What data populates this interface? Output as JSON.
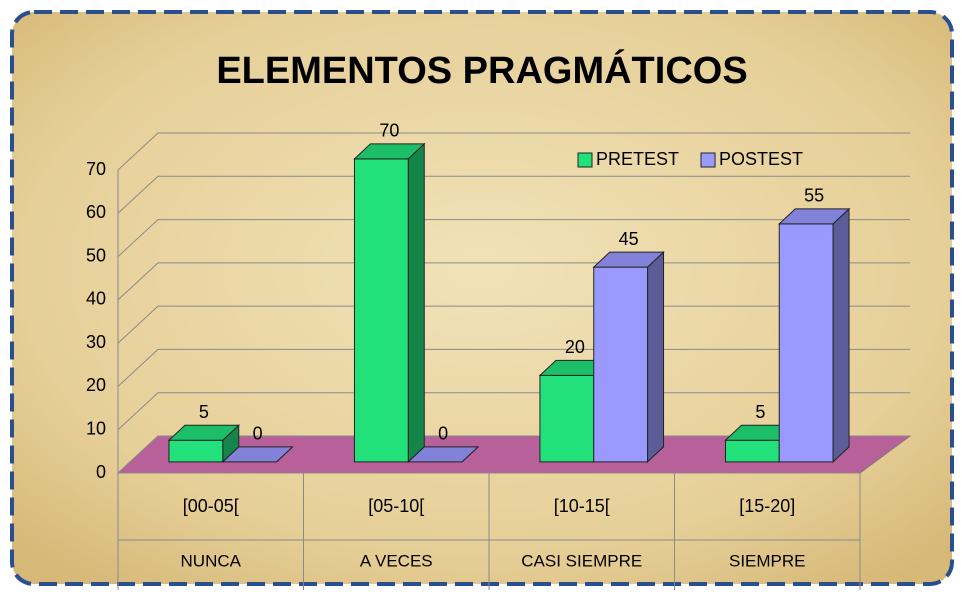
{
  "chart_data": {
    "type": "bar3d",
    "title": "ELEMENTOS PRAGMÁTICOS",
    "categories": [
      "[00-05[",
      "[05-10[",
      "[10-15[",
      "[15-20]"
    ],
    "category_groups": [
      "NUNCA",
      "A VECES",
      "CASI SIEMPRE",
      "SIEMPRE"
    ],
    "series": [
      {
        "name": "PRETEST",
        "color": "#22e07a",
        "values": [
          5,
          70,
          20,
          5
        ]
      },
      {
        "name": "POSTEST",
        "color": "#9999ff",
        "values": [
          0,
          0,
          45,
          55
        ]
      }
    ],
    "ylim": [
      0,
      70
    ],
    "yticks": [
      0,
      10,
      20,
      30,
      40,
      50,
      60,
      70
    ],
    "grid": true,
    "legend": "top-right",
    "data_labels": true
  }
}
